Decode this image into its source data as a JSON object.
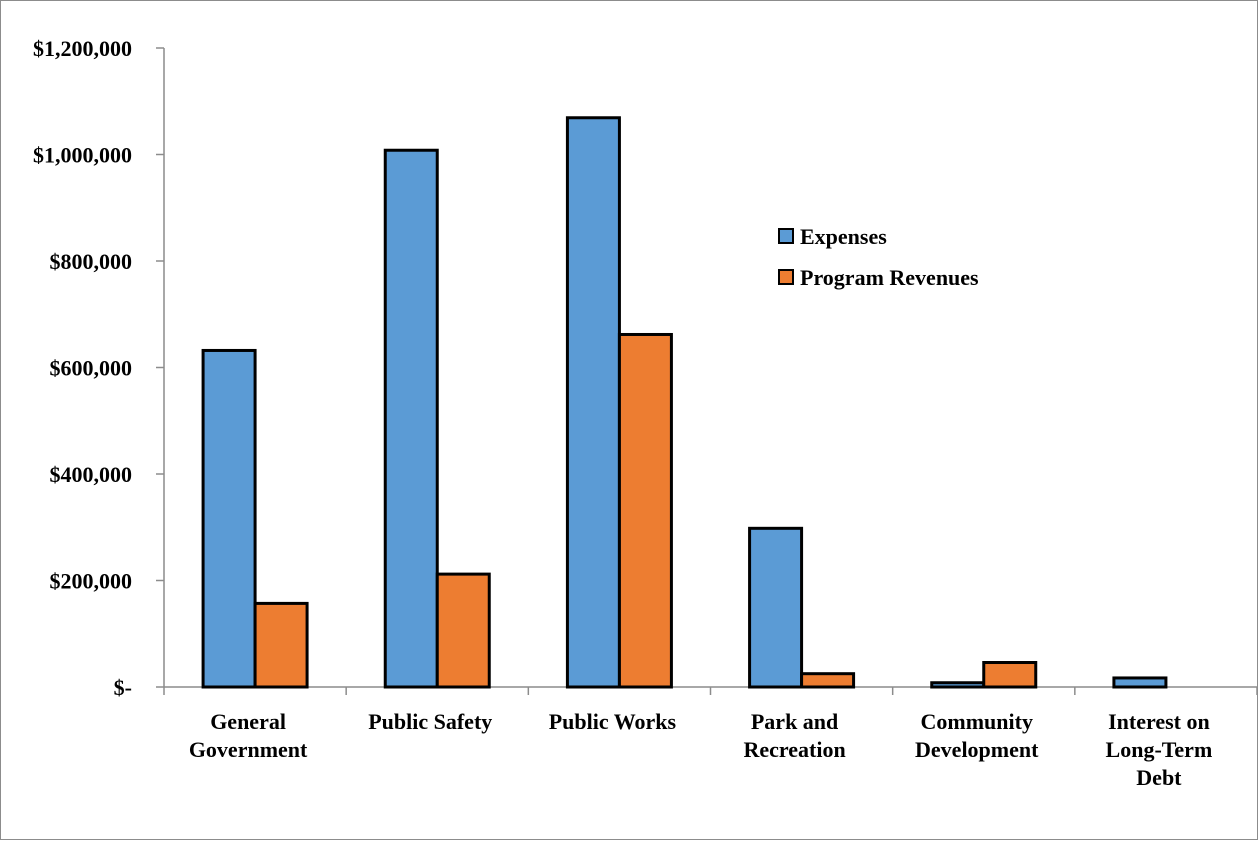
{
  "chart_data": {
    "type": "bar",
    "categories": [
      [
        "General",
        "Government"
      ],
      [
        "Public Safety"
      ],
      [
        "Public Works"
      ],
      [
        "Park and",
        "Recreation"
      ],
      [
        "Community",
        "Development"
      ],
      [
        "Interest on",
        "Long-Term",
        "Debt"
      ]
    ],
    "series": [
      {
        "name": "Expenses",
        "color": "#5B9BD5",
        "values": [
          632000,
          1008000,
          1069000,
          298000,
          8000,
          17000
        ]
      },
      {
        "name": "Program Revenues",
        "color": "#ED7D31",
        "values": [
          157000,
          212000,
          662000,
          25000,
          46000,
          0
        ]
      }
    ],
    "yticks": [
      {
        "value": 0,
        "label": "$-"
      },
      {
        "value": 200000,
        "label": "$200,000"
      },
      {
        "value": 400000,
        "label": "$400,000"
      },
      {
        "value": 600000,
        "label": "$600,000"
      },
      {
        "value": 800000,
        "label": "$800,000"
      },
      {
        "value": 1000000,
        "label": "$1,000,000"
      },
      {
        "value": 1200000,
        "label": "$1,200,000"
      }
    ],
    "ylim": [
      0,
      1200000
    ],
    "title": "",
    "xlabel": "",
    "ylabel": "",
    "grid": false,
    "legend_position": "upper-right-inside"
  }
}
